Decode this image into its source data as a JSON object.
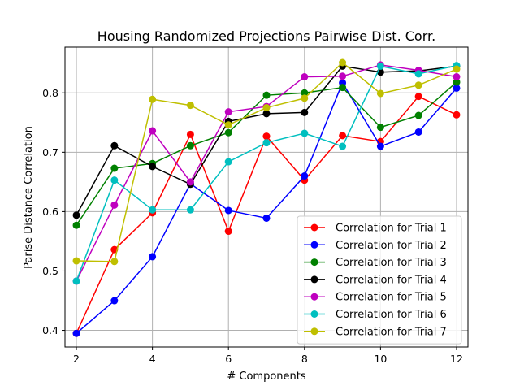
{
  "chart_data": {
    "type": "line",
    "title": "Housing Randomized Projections Pairwise Dist. Corr.",
    "xlabel": "# Components",
    "ylabel": "Parise Distance Correlation",
    "xlim": [
      1.7,
      12.3
    ],
    "ylim": [
      0.372,
      0.877
    ],
    "xticks": [
      2,
      4,
      6,
      8,
      10,
      12
    ],
    "xtick_labels": [
      "2",
      "4",
      "6",
      "8",
      "10",
      "12"
    ],
    "yticks": [
      0.4,
      0.5,
      0.6,
      0.7,
      0.8
    ],
    "ytick_labels": [
      "0.4",
      "0.5",
      "0.6",
      "0.7",
      "0.8"
    ],
    "grid": true,
    "legend_position": "bottom-right",
    "x": [
      2,
      3,
      4,
      5,
      6,
      7,
      8,
      9,
      10,
      11,
      12
    ],
    "series": [
      {
        "name": "Correlation for Trial 1",
        "color": "#ff0000",
        "values": [
          0.395,
          0.536,
          0.598,
          0.73,
          0.567,
          0.727,
          0.653,
          0.728,
          0.718,
          0.794,
          0.763
        ]
      },
      {
        "name": "Correlation for Trial 2",
        "color": "#0000ff",
        "values": [
          0.395,
          0.45,
          0.524,
          0.647,
          0.602,
          0.589,
          0.66,
          0.817,
          0.71,
          0.734,
          0.808
        ]
      },
      {
        "name": "Correlation for Trial 3",
        "color": "#008000",
        "values": [
          0.577,
          0.673,
          0.681,
          0.711,
          0.733,
          0.796,
          0.8,
          0.809,
          0.742,
          0.762,
          0.818
        ]
      },
      {
        "name": "Correlation for Trial 4",
        "color": "#000000",
        "values": [
          0.594,
          0.711,
          0.676,
          0.646,
          0.752,
          0.765,
          0.767,
          0.845,
          0.835,
          0.837,
          0.845
        ]
      },
      {
        "name": "Correlation for Trial 5",
        "color": "#bf00bf",
        "values": [
          0.483,
          0.611,
          0.736,
          0.65,
          0.768,
          0.777,
          0.827,
          0.828,
          0.847,
          0.838,
          0.827
        ]
      },
      {
        "name": "Correlation for Trial 6",
        "color": "#00bfbf",
        "values": [
          0.483,
          0.653,
          0.603,
          0.603,
          0.684,
          0.716,
          0.732,
          0.71,
          0.845,
          0.832,
          0.846
        ]
      },
      {
        "name": "Correlation for Trial 7",
        "color": "#bfbf00",
        "values": [
          0.517,
          0.516,
          0.789,
          0.779,
          0.746,
          0.775,
          0.791,
          0.851,
          0.799,
          0.813,
          0.84
        ]
      }
    ]
  }
}
